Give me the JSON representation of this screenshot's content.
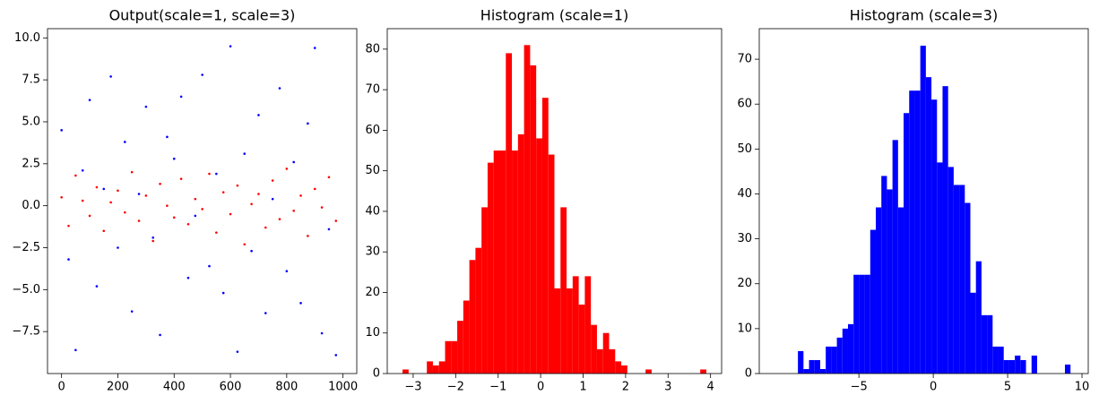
{
  "chart_data": [
    {
      "type": "scatter",
      "title": "Output(scale=1, scale=3)",
      "xlim": [
        -49.95,
        1048.95
      ],
      "ylim": [
        -10.0,
        10.55
      ],
      "xticks": [
        0,
        200,
        400,
        600,
        800,
        1000
      ],
      "yticks": [
        {
          "value": -7.5,
          "label": "−7.5"
        },
        {
          "value": -5.0,
          "label": "−5.0"
        },
        {
          "value": -2.5,
          "label": "−2.5"
        },
        {
          "value": 0.0,
          "label": "0.0"
        },
        2.5,
        {
          "value": 5.0,
          "label": "5.0"
        },
        7.5,
        {
          "value": 10.0,
          "label": "10.0"
        }
      ],
      "series": [
        {
          "color": "#0000ff",
          "x": [
            0,
            25,
            50,
            75,
            100,
            125,
            150,
            175,
            200,
            225,
            250,
            275,
            300,
            325,
            350,
            375,
            400,
            425,
            450,
            475,
            500,
            525,
            550,
            575,
            600,
            625,
            650,
            675,
            700,
            725,
            750,
            775,
            800,
            825,
            850,
            875,
            900,
            925,
            950,
            975
          ],
          "values": [
            4.5,
            -3.2,
            -8.6,
            2.1,
            6.3,
            -4.8,
            1.0,
            7.7,
            -2.5,
            3.8,
            -6.3,
            0.7,
            5.9,
            -1.9,
            -7.7,
            4.1,
            2.8,
            6.5,
            -4.3,
            -0.6,
            7.8,
            -3.6,
            1.9,
            -5.2,
            9.5,
            -8.7,
            3.1,
            -2.7,
            5.4,
            -6.4,
            0.4,
            7.0,
            -3.9,
            2.6,
            -5.8,
            4.9,
            9.4,
            -7.6,
            -1.4,
            -8.9
          ]
        },
        {
          "color": "#ff0000",
          "x": [
            0,
            25,
            50,
            75,
            100,
            125,
            150,
            175,
            200,
            225,
            250,
            275,
            300,
            325,
            350,
            375,
            400,
            425,
            450,
            475,
            500,
            525,
            550,
            575,
            600,
            625,
            650,
            675,
            700,
            725,
            750,
            775,
            800,
            825,
            850,
            875,
            900,
            925,
            950,
            975
          ],
          "values": [
            0.5,
            -1.2,
            1.8,
            0.3,
            -0.6,
            1.1,
            -1.5,
            0.2,
            0.9,
            -0.4,
            2.0,
            -0.9,
            0.6,
            -2.1,
            1.3,
            0.0,
            -0.7,
            1.6,
            -1.1,
            0.4,
            -0.2,
            1.9,
            -1.6,
            0.8,
            -0.5,
            1.2,
            -2.3,
            0.1,
            0.7,
            -1.3,
            1.5,
            -0.8,
            2.2,
            -0.3,
            0.6,
            -1.8,
            1.0,
            -0.1,
            1.7,
            -0.9
          ]
        }
      ]
    },
    {
      "type": "histogram",
      "title": "Histogram (scale=1)",
      "color": "#ff0000",
      "xlim": [
        -3.61,
        4.26
      ],
      "ylim": [
        0,
        85.05
      ],
      "xticks": [
        {
          "value": -3,
          "label": "−3"
        },
        {
          "value": -2,
          "label": "−2"
        },
        {
          "value": -1,
          "label": "−1"
        },
        0,
        1,
        2,
        3,
        4
      ],
      "yticks": [
        0,
        10,
        20,
        30,
        40,
        50,
        60,
        70,
        80
      ],
      "bins": [
        -3.25,
        -3.107,
        -2.964,
        -2.821,
        -2.678,
        -2.535,
        -2.392,
        -2.249,
        -2.106,
        -1.963,
        -1.82,
        -1.677,
        -1.534,
        -1.391,
        -1.248,
        -1.105,
        -0.962,
        -0.819,
        -0.676,
        -0.533,
        -0.39,
        -0.247,
        -0.104,
        0.039,
        0.182,
        0.325,
        0.468,
        0.611,
        0.754,
        0.897,
        1.04,
        1.183,
        1.326,
        1.469,
        1.612,
        1.755,
        1.898,
        2.041,
        2.184,
        2.327,
        2.47,
        2.613,
        2.756,
        2.899,
        3.042,
        3.185,
        3.328,
        3.471,
        3.614,
        3.757,
        3.9
      ],
      "values": [
        1,
        0,
        0,
        0,
        3,
        2,
        3,
        8,
        8,
        13,
        18,
        28,
        31,
        41,
        52,
        55,
        55,
        79,
        55,
        59,
        81,
        76,
        58,
        68,
        54,
        21,
        41,
        21,
        24,
        17,
        24,
        12,
        6,
        10,
        6,
        3,
        2,
        0,
        0,
        0,
        1,
        0,
        0,
        0,
        0,
        0,
        0,
        0,
        0,
        1
      ]
    },
    {
      "type": "histogram",
      "title": "Histogram (scale=3)",
      "color": "#0000ff",
      "xlim": [
        -11.7,
        10.42
      ],
      "ylim": [
        0,
        76.8
      ],
      "xticks": [
        {
          "value": -5,
          "label": "−5"
        },
        0,
        5,
        10
      ],
      "yticks": [
        0,
        10,
        20,
        30,
        40,
        50,
        60,
        70
      ],
      "bins": [
        -9.1,
        -8.726,
        -8.352,
        -7.978,
        -7.604,
        -7.23,
        -6.856,
        -6.482,
        -6.108,
        -5.734,
        -5.36,
        -4.986,
        -4.612,
        -4.238,
        -3.864,
        -3.49,
        -3.116,
        -2.742,
        -2.368,
        -1.994,
        -1.62,
        -1.246,
        -0.872,
        -0.498,
        -0.124,
        0.25,
        0.624,
        0.998,
        1.372,
        1.746,
        2.12,
        2.494,
        2.868,
        3.242,
        3.616,
        3.99,
        4.364,
        4.738,
        5.112,
        5.486,
        5.86,
        6.234,
        6.608,
        6.982,
        7.356,
        7.73,
        8.104,
        8.478,
        8.852,
        9.226,
        9.6
      ],
      "values": [
        5,
        1,
        3,
        3,
        1,
        6,
        6,
        8,
        10,
        11,
        22,
        22,
        22,
        32,
        37,
        44,
        41,
        52,
        37,
        58,
        63,
        63,
        73,
        66,
        61,
        47,
        64,
        46,
        42,
        42,
        38,
        18,
        25,
        13,
        13,
        6,
        6,
        3,
        3,
        4,
        3,
        0,
        4,
        0,
        0,
        0,
        0,
        0,
        2,
        0
      ]
    }
  ]
}
